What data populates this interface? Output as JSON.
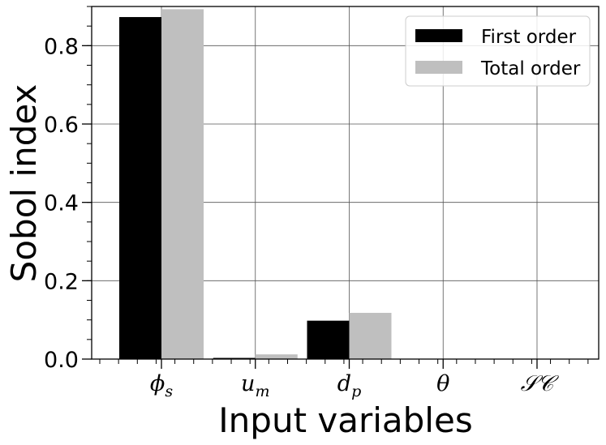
{
  "chart_data": {
    "type": "bar",
    "categories": [
      "ϕs",
      "um",
      "dp",
      "θ",
      "SC"
    ],
    "category_labels": [
      {
        "base": "ϕ",
        "sub": "s"
      },
      {
        "base": "u",
        "sub": "m"
      },
      {
        "base": "d",
        "sub": "p"
      },
      {
        "base": "θ",
        "sub": ""
      },
      {
        "base": "𝒮𝒞",
        "sub": ""
      }
    ],
    "series": [
      {
        "name": "First order",
        "color": "#000000",
        "values": [
          0.873,
          0.003,
          0.098,
          0.0,
          0.0
        ]
      },
      {
        "name": "Total order",
        "color": "#bfbfbf",
        "values": [
          0.893,
          0.012,
          0.118,
          0.0,
          0.0
        ]
      }
    ],
    "xlabel": "Input variables",
    "ylabel": "Sobol index",
    "ylim": [
      0,
      0.9
    ],
    "yticks": [
      "0.0",
      "0.2",
      "0.4",
      "0.6",
      "0.8"
    ],
    "ytick_values": [
      0.0,
      0.2,
      0.4,
      0.6,
      0.8
    ],
    "grid": true,
    "legend_position": "top-right"
  }
}
